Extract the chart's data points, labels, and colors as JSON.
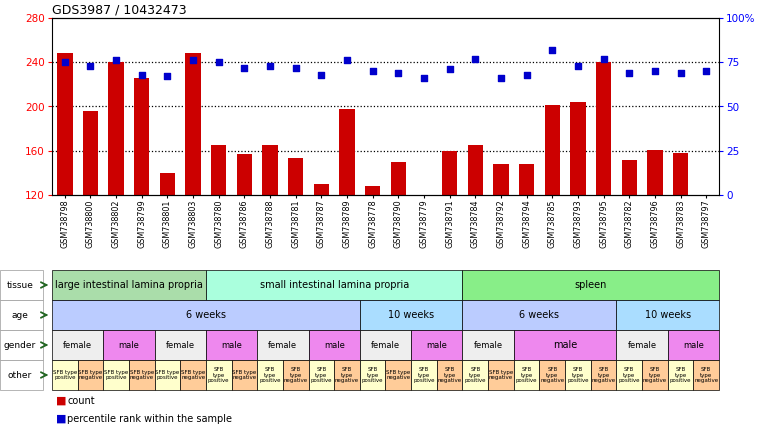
{
  "title": "GDS3987 / 10432473",
  "samples": [
    "GSM738798",
    "GSM738800",
    "GSM738802",
    "GSM738799",
    "GSM738801",
    "GSM738803",
    "GSM738780",
    "GSM738786",
    "GSM738788",
    "GSM738781",
    "GSM738787",
    "GSM738789",
    "GSM738778",
    "GSM738790",
    "GSM738779",
    "GSM738791",
    "GSM738784",
    "GSM738792",
    "GSM738794",
    "GSM738785",
    "GSM738793",
    "GSM738795",
    "GSM738782",
    "GSM738796",
    "GSM738783",
    "GSM738797"
  ],
  "counts": [
    248,
    196,
    240,
    226,
    140,
    248,
    165,
    157,
    165,
    153,
    130,
    198,
    128,
    150,
    119,
    160,
    165,
    148,
    148,
    201,
    204,
    240,
    152,
    161,
    158,
    120
  ],
  "percentiles": [
    75,
    73,
    76,
    68,
    67,
    76,
    75,
    72,
    73,
    72,
    68,
    76,
    70,
    69,
    66,
    71,
    77,
    66,
    68,
    82,
    73,
    77,
    69,
    70,
    69,
    70
  ],
  "ylim": [
    120,
    280
  ],
  "yticks": [
    120,
    160,
    200,
    240,
    280
  ],
  "ylim_right": [
    0,
    100
  ],
  "yticks_right": [
    0,
    25,
    50,
    75,
    100
  ],
  "bar_color": "#cc0000",
  "dot_color": "#0000cc",
  "tissue_groups": [
    {
      "label": "large intestinal lamina propria",
      "start": 0,
      "end": 5,
      "color": "#aaddaa"
    },
    {
      "label": "small intestinal lamina propria",
      "start": 6,
      "end": 15,
      "color": "#aaffdd"
    },
    {
      "label": "spleen",
      "start": 16,
      "end": 25,
      "color": "#88ee88"
    }
  ],
  "age_groups": [
    {
      "label": "6 weeks",
      "start": 0,
      "end": 11,
      "color": "#bbccff"
    },
    {
      "label": "10 weeks",
      "start": 12,
      "end": 15,
      "color": "#aaddff"
    },
    {
      "label": "6 weeks",
      "start": 16,
      "end": 21,
      "color": "#bbccff"
    },
    {
      "label": "10 weeks",
      "start": 22,
      "end": 25,
      "color": "#aaddff"
    }
  ],
  "gender_groups": [
    {
      "label": "female",
      "start": 0,
      "end": 1,
      "color": "#eeeeee"
    },
    {
      "label": "male",
      "start": 2,
      "end": 3,
      "color": "#ee88ee"
    },
    {
      "label": "female",
      "start": 4,
      "end": 5,
      "color": "#eeeeee"
    },
    {
      "label": "male",
      "start": 6,
      "end": 7,
      "color": "#ee88ee"
    },
    {
      "label": "female",
      "start": 8,
      "end": 9,
      "color": "#eeeeee"
    },
    {
      "label": "male",
      "start": 10,
      "end": 11,
      "color": "#ee88ee"
    },
    {
      "label": "female",
      "start": 12,
      "end": 13,
      "color": "#eeeeee"
    },
    {
      "label": "male",
      "start": 14,
      "end": 15,
      "color": "#ee88ee"
    },
    {
      "label": "female",
      "start": 16,
      "end": 17,
      "color": "#eeeeee"
    },
    {
      "label": "male",
      "start": 18,
      "end": 21,
      "color": "#ee88ee"
    },
    {
      "label": "female",
      "start": 22,
      "end": 23,
      "color": "#eeeeee"
    },
    {
      "label": "male",
      "start": 24,
      "end": 25,
      "color": "#ee88ee"
    }
  ],
  "other_groups": [
    {
      "label": "SFB type\npositive",
      "start": 0,
      "end": 0,
      "color": "#ffffcc"
    },
    {
      "label": "SFB type\nnegative",
      "start": 1,
      "end": 1,
      "color": "#ffcc99"
    },
    {
      "label": "SFB type\npositive",
      "start": 2,
      "end": 2,
      "color": "#ffffcc"
    },
    {
      "label": "SFB type\nnegative",
      "start": 3,
      "end": 3,
      "color": "#ffcc99"
    },
    {
      "label": "SFB type\npositive",
      "start": 4,
      "end": 4,
      "color": "#ffffcc"
    },
    {
      "label": "SFB type\nnegative",
      "start": 5,
      "end": 5,
      "color": "#ffcc99"
    },
    {
      "label": "SFB\ntype\npositive",
      "start": 6,
      "end": 6,
      "color": "#ffffcc"
    },
    {
      "label": "SFB type\nnegative",
      "start": 7,
      "end": 7,
      "color": "#ffcc99"
    },
    {
      "label": "SFB\ntype\npositive",
      "start": 8,
      "end": 8,
      "color": "#ffffcc"
    },
    {
      "label": "SFB\ntype\nnegative",
      "start": 9,
      "end": 9,
      "color": "#ffcc99"
    },
    {
      "label": "SFB\ntype\npositive",
      "start": 10,
      "end": 10,
      "color": "#ffffcc"
    },
    {
      "label": "SFB\ntype\nnegative",
      "start": 11,
      "end": 11,
      "color": "#ffcc99"
    },
    {
      "label": "SFB\ntype\npositive",
      "start": 12,
      "end": 12,
      "color": "#ffffcc"
    },
    {
      "label": "SFB type\nnegative",
      "start": 13,
      "end": 13,
      "color": "#ffcc99"
    },
    {
      "label": "SFB\ntype\npositive",
      "start": 14,
      "end": 14,
      "color": "#ffffcc"
    },
    {
      "label": "SFB\ntype\nnegative",
      "start": 15,
      "end": 15,
      "color": "#ffcc99"
    },
    {
      "label": "SFB\ntype\npositive",
      "start": 16,
      "end": 16,
      "color": "#ffffcc"
    },
    {
      "label": "SFB type\nnegative",
      "start": 17,
      "end": 17,
      "color": "#ffcc99"
    },
    {
      "label": "SFB\ntype\npositive",
      "start": 18,
      "end": 18,
      "color": "#ffffcc"
    },
    {
      "label": "SFB\ntype\nnegative",
      "start": 19,
      "end": 19,
      "color": "#ffcc99"
    },
    {
      "label": "SFB\ntype\npositive",
      "start": 20,
      "end": 20,
      "color": "#ffffcc"
    },
    {
      "label": "SFB\ntype\nnegative",
      "start": 21,
      "end": 21,
      "color": "#ffcc99"
    },
    {
      "label": "SFB\ntype\npositive",
      "start": 22,
      "end": 22,
      "color": "#ffffcc"
    },
    {
      "label": "SFB\ntype\nnegative",
      "start": 23,
      "end": 23,
      "color": "#ffcc99"
    },
    {
      "label": "SFB\ntype\npositive",
      "start": 24,
      "end": 24,
      "color": "#ffffcc"
    },
    {
      "label": "SFB\ntype\nnegative",
      "start": 25,
      "end": 25,
      "color": "#ffcc99"
    }
  ],
  "row_labels": [
    "tissue",
    "age",
    "gender",
    "other"
  ],
  "background_color": "#ffffff"
}
